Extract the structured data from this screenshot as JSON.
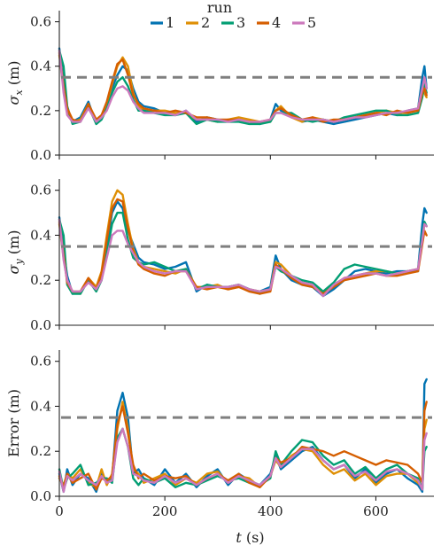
{
  "legend": {
    "title": "run",
    "entries": [
      "1",
      "2",
      "3",
      "4",
      "5"
    ]
  },
  "colors": {
    "series": [
      "#0173b2",
      "#de8f05",
      "#029e73",
      "#d55e00",
      "#cc78bc"
    ],
    "threshold": "#7f7f7f",
    "axis": "#222222"
  },
  "chart_data": [
    {
      "type": "line",
      "ylabel_text": "σ",
      "ylabel_sub": "x",
      "ylabel_unit": " (m)",
      "ylim": [
        0.0,
        0.65
      ],
      "xlim": [
        0,
        710
      ],
      "yticks": [
        0.0,
        0.2,
        0.4,
        0.6
      ],
      "ytick_labels": [
        "0.0",
        "0.2",
        "0.4",
        "0.6"
      ],
      "xticks": [
        0,
        200,
        400,
        600
      ],
      "xtick_labels": [
        "",
        "",
        "",
        ""
      ],
      "threshold": 0.35,
      "grid": false,
      "x": [
        0,
        8,
        15,
        25,
        40,
        55,
        70,
        80,
        90,
        100,
        110,
        120,
        130,
        140,
        150,
        160,
        180,
        200,
        220,
        240,
        260,
        280,
        300,
        320,
        340,
        360,
        380,
        400,
        410,
        420,
        440,
        460,
        480,
        500,
        520,
        540,
        560,
        580,
        600,
        620,
        640,
        660,
        680,
        688,
        692,
        696
      ],
      "series": [
        {
          "name": "1",
          "values": [
            0.48,
            0.32,
            0.2,
            0.15,
            0.17,
            0.24,
            0.14,
            0.18,
            0.22,
            0.3,
            0.36,
            0.4,
            0.38,
            0.3,
            0.24,
            0.22,
            0.21,
            0.19,
            0.18,
            0.2,
            0.15,
            0.17,
            0.16,
            0.15,
            0.16,
            0.15,
            0.14,
            0.16,
            0.23,
            0.2,
            0.18,
            0.15,
            0.16,
            0.15,
            0.14,
            0.15,
            0.16,
            0.17,
            0.18,
            0.19,
            0.18,
            0.2,
            0.21,
            0.35,
            0.4,
            0.3
          ]
        },
        {
          "name": "2",
          "values": [
            0.45,
            0.3,
            0.19,
            0.15,
            0.16,
            0.23,
            0.15,
            0.17,
            0.23,
            0.32,
            0.4,
            0.44,
            0.4,
            0.28,
            0.22,
            0.2,
            0.2,
            0.2,
            0.19,
            0.19,
            0.16,
            0.16,
            0.15,
            0.16,
            0.17,
            0.16,
            0.15,
            0.15,
            0.2,
            0.22,
            0.17,
            0.15,
            0.17,
            0.16,
            0.15,
            0.16,
            0.17,
            0.18,
            0.19,
            0.2,
            0.19,
            0.19,
            0.21,
            0.3,
            0.28,
            0.26
          ]
        },
        {
          "name": "3",
          "values": [
            0.47,
            0.4,
            0.22,
            0.14,
            0.15,
            0.22,
            0.14,
            0.16,
            0.21,
            0.28,
            0.33,
            0.35,
            0.31,
            0.25,
            0.2,
            0.2,
            0.19,
            0.18,
            0.18,
            0.19,
            0.14,
            0.16,
            0.15,
            0.15,
            0.15,
            0.14,
            0.14,
            0.15,
            0.19,
            0.19,
            0.19,
            0.16,
            0.15,
            0.16,
            0.15,
            0.17,
            0.18,
            0.19,
            0.2,
            0.2,
            0.18,
            0.18,
            0.19,
            0.26,
            0.32,
            0.28
          ]
        },
        {
          "name": "4",
          "values": [
            0.46,
            0.31,
            0.21,
            0.16,
            0.15,
            0.23,
            0.16,
            0.18,
            0.24,
            0.33,
            0.41,
            0.43,
            0.36,
            0.27,
            0.23,
            0.21,
            0.2,
            0.19,
            0.2,
            0.19,
            0.17,
            0.17,
            0.16,
            0.16,
            0.16,
            0.15,
            0.15,
            0.16,
            0.2,
            0.21,
            0.18,
            0.16,
            0.17,
            0.15,
            0.16,
            0.16,
            0.17,
            0.18,
            0.19,
            0.18,
            0.2,
            0.19,
            0.2,
            0.28,
            0.3,
            0.27
          ]
        },
        {
          "name": "5",
          "values": [
            0.47,
            0.28,
            0.18,
            0.15,
            0.15,
            0.21,
            0.15,
            0.17,
            0.2,
            0.26,
            0.3,
            0.31,
            0.29,
            0.24,
            0.21,
            0.19,
            0.19,
            0.19,
            0.18,
            0.2,
            0.16,
            0.16,
            0.16,
            0.15,
            0.16,
            0.15,
            0.15,
            0.16,
            0.19,
            0.19,
            0.17,
            0.16,
            0.16,
            0.16,
            0.15,
            0.16,
            0.17,
            0.17,
            0.18,
            0.19,
            0.19,
            0.2,
            0.21,
            0.3,
            0.35,
            0.3
          ]
        }
      ]
    },
    {
      "type": "line",
      "ylabel_text": "σ",
      "ylabel_sub": "y",
      "ylabel_unit": " (m)",
      "ylim": [
        0.0,
        0.65
      ],
      "xlim": [
        0,
        710
      ],
      "yticks": [
        0.0,
        0.2,
        0.4,
        0.6
      ],
      "ytick_labels": [
        "0.0",
        "0.2",
        "0.4",
        "0.6"
      ],
      "xticks": [
        0,
        200,
        400,
        600
      ],
      "xtick_labels": [
        "",
        "",
        "",
        ""
      ],
      "threshold": 0.35,
      "grid": false,
      "x": [
        0,
        8,
        15,
        25,
        40,
        55,
        70,
        80,
        90,
        100,
        110,
        120,
        130,
        140,
        150,
        160,
        180,
        200,
        220,
        240,
        260,
        280,
        300,
        320,
        340,
        360,
        380,
        400,
        410,
        420,
        440,
        460,
        480,
        500,
        520,
        540,
        560,
        580,
        600,
        620,
        640,
        660,
        680,
        688,
        692,
        696
      ],
      "series": [
        {
          "name": "1",
          "values": [
            0.48,
            0.33,
            0.22,
            0.14,
            0.15,
            0.2,
            0.16,
            0.22,
            0.35,
            0.5,
            0.55,
            0.52,
            0.42,
            0.36,
            0.3,
            0.28,
            0.27,
            0.25,
            0.26,
            0.28,
            0.15,
            0.18,
            0.17,
            0.17,
            0.18,
            0.16,
            0.15,
            0.17,
            0.31,
            0.25,
            0.2,
            0.18,
            0.17,
            0.13,
            0.16,
            0.2,
            0.24,
            0.25,
            0.24,
            0.23,
            0.24,
            0.24,
            0.25,
            0.45,
            0.52,
            0.5
          ]
        },
        {
          "name": "2",
          "values": [
            0.45,
            0.3,
            0.2,
            0.15,
            0.14,
            0.21,
            0.17,
            0.24,
            0.4,
            0.55,
            0.6,
            0.58,
            0.45,
            0.34,
            0.28,
            0.26,
            0.25,
            0.24,
            0.23,
            0.25,
            0.17,
            0.17,
            0.18,
            0.16,
            0.17,
            0.16,
            0.15,
            0.16,
            0.28,
            0.27,
            0.22,
            0.19,
            0.18,
            0.14,
            0.18,
            0.21,
            0.22,
            0.23,
            0.24,
            0.24,
            0.23,
            0.24,
            0.25,
            0.38,
            0.45,
            0.44
          ]
        },
        {
          "name": "3",
          "values": [
            0.47,
            0.4,
            0.18,
            0.14,
            0.14,
            0.2,
            0.15,
            0.2,
            0.32,
            0.45,
            0.5,
            0.5,
            0.38,
            0.3,
            0.28,
            0.27,
            0.28,
            0.26,
            0.24,
            0.25,
            0.16,
            0.18,
            0.17,
            0.17,
            0.18,
            0.16,
            0.14,
            0.16,
            0.26,
            0.24,
            0.22,
            0.2,
            0.19,
            0.15,
            0.19,
            0.25,
            0.27,
            0.26,
            0.25,
            0.24,
            0.23,
            0.24,
            0.24,
            0.4,
            0.46,
            0.44
          ]
        },
        {
          "name": "4",
          "values": [
            0.46,
            0.31,
            0.19,
            0.15,
            0.15,
            0.21,
            0.16,
            0.23,
            0.38,
            0.52,
            0.56,
            0.55,
            0.43,
            0.33,
            0.27,
            0.25,
            0.23,
            0.22,
            0.24,
            0.24,
            0.17,
            0.16,
            0.17,
            0.16,
            0.17,
            0.15,
            0.14,
            0.15,
            0.27,
            0.25,
            0.21,
            0.18,
            0.17,
            0.14,
            0.17,
            0.2,
            0.21,
            0.22,
            0.23,
            0.22,
            0.22,
            0.23,
            0.24,
            0.36,
            0.42,
            0.4
          ]
        },
        {
          "name": "5",
          "values": [
            0.47,
            0.29,
            0.2,
            0.15,
            0.15,
            0.19,
            0.16,
            0.2,
            0.3,
            0.4,
            0.42,
            0.42,
            0.36,
            0.32,
            0.28,
            0.26,
            0.24,
            0.23,
            0.24,
            0.24,
            0.16,
            0.17,
            0.17,
            0.17,
            0.18,
            0.16,
            0.15,
            0.16,
            0.26,
            0.25,
            0.22,
            0.19,
            0.18,
            0.13,
            0.18,
            0.21,
            0.22,
            0.23,
            0.23,
            0.22,
            0.23,
            0.24,
            0.25,
            0.38,
            0.45,
            0.44
          ]
        }
      ]
    },
    {
      "type": "line",
      "ylabel_text": "Error",
      "ylabel_sub": "",
      "ylabel_unit": " (m)",
      "xlabel_var": "t",
      "xlabel_unit": " (s)",
      "ylim": [
        0.0,
        0.65
      ],
      "xlim": [
        0,
        710
      ],
      "yticks": [
        0.0,
        0.2,
        0.4,
        0.6
      ],
      "ytick_labels": [
        "0.0",
        "0.2",
        "0.4",
        "0.6"
      ],
      "xticks": [
        0,
        200,
        400,
        600
      ],
      "xtick_labels": [
        "0",
        "200",
        "400",
        "600"
      ],
      "threshold": 0.35,
      "grid": false,
      "x": [
        0,
        8,
        15,
        25,
        40,
        55,
        70,
        80,
        90,
        100,
        110,
        120,
        130,
        140,
        150,
        160,
        180,
        200,
        220,
        240,
        260,
        280,
        300,
        320,
        340,
        360,
        380,
        400,
        410,
        420,
        440,
        460,
        480,
        500,
        520,
        540,
        560,
        580,
        600,
        620,
        640,
        660,
        680,
        688,
        692,
        696
      ],
      "series": [
        {
          "name": "1",
          "values": [
            0.1,
            0.02,
            0.12,
            0.05,
            0.1,
            0.08,
            0.02,
            0.1,
            0.06,
            0.08,
            0.38,
            0.46,
            0.35,
            0.1,
            0.12,
            0.08,
            0.05,
            0.12,
            0.06,
            0.1,
            0.04,
            0.09,
            0.12,
            0.05,
            0.1,
            0.07,
            0.05,
            0.1,
            0.18,
            0.12,
            0.16,
            0.2,
            0.22,
            0.16,
            0.12,
            0.14,
            0.08,
            0.12,
            0.06,
            0.1,
            0.12,
            0.08,
            0.05,
            0.02,
            0.5,
            0.52
          ]
        },
        {
          "name": "2",
          "values": [
            0.08,
            0.05,
            0.1,
            0.08,
            0.12,
            0.06,
            0.04,
            0.12,
            0.05,
            0.1,
            0.3,
            0.42,
            0.3,
            0.12,
            0.1,
            0.06,
            0.08,
            0.1,
            0.05,
            0.08,
            0.06,
            0.1,
            0.11,
            0.06,
            0.09,
            0.08,
            0.04,
            0.09,
            0.16,
            0.13,
            0.18,
            0.21,
            0.2,
            0.14,
            0.1,
            0.12,
            0.07,
            0.1,
            0.05,
            0.09,
            0.1,
            0.1,
            0.06,
            0.04,
            0.3,
            0.34
          ]
        },
        {
          "name": "3",
          "values": [
            0.12,
            0.03,
            0.08,
            0.1,
            0.14,
            0.05,
            0.06,
            0.08,
            0.08,
            0.06,
            0.26,
            0.3,
            0.22,
            0.08,
            0.05,
            0.08,
            0.06,
            0.08,
            0.04,
            0.06,
            0.05,
            0.07,
            0.09,
            0.07,
            0.08,
            0.06,
            0.05,
            0.08,
            0.2,
            0.14,
            0.2,
            0.25,
            0.24,
            0.18,
            0.14,
            0.16,
            0.1,
            0.13,
            0.08,
            0.12,
            0.14,
            0.1,
            0.08,
            0.03,
            0.2,
            0.22
          ]
        },
        {
          "name": "4",
          "values": [
            0.09,
            0.04,
            0.1,
            0.06,
            0.08,
            0.1,
            0.03,
            0.08,
            0.07,
            0.09,
            0.32,
            0.4,
            0.28,
            0.14,
            0.08,
            0.1,
            0.07,
            0.09,
            0.08,
            0.09,
            0.05,
            0.08,
            0.1,
            0.07,
            0.1,
            0.06,
            0.04,
            0.09,
            0.17,
            0.15,
            0.17,
            0.22,
            0.21,
            0.2,
            0.18,
            0.2,
            0.18,
            0.16,
            0.14,
            0.16,
            0.15,
            0.14,
            0.1,
            0.06,
            0.38,
            0.42
          ]
        },
        {
          "name": "5",
          "values": [
            0.11,
            0.02,
            0.09,
            0.07,
            0.1,
            0.07,
            0.05,
            0.09,
            0.06,
            0.07,
            0.24,
            0.3,
            0.22,
            0.1,
            0.09,
            0.07,
            0.06,
            0.09,
            0.06,
            0.08,
            0.05,
            0.08,
            0.1,
            0.06,
            0.09,
            0.07,
            0.05,
            0.09,
            0.17,
            0.13,
            0.17,
            0.21,
            0.21,
            0.16,
            0.12,
            0.14,
            0.09,
            0.11,
            0.07,
            0.11,
            0.12,
            0.1,
            0.07,
            0.03,
            0.25,
            0.28
          ]
        }
      ]
    }
  ]
}
